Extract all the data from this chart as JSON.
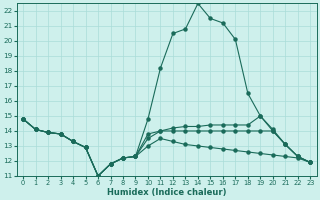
{
  "xlabel": "Humidex (Indice chaleur)",
  "bg_color": "#cef0ec",
  "grid_color": "#aaddd8",
  "line_color": "#1a6b5a",
  "xlim": [
    -0.5,
    23.5
  ],
  "ylim": [
    11,
    22.5
  ],
  "xticks": [
    0,
    1,
    2,
    3,
    4,
    5,
    6,
    7,
    8,
    9,
    10,
    11,
    12,
    13,
    14,
    15,
    16,
    17,
    18,
    19,
    20,
    21,
    22,
    23
  ],
  "yticks": [
    11,
    12,
    13,
    14,
    15,
    16,
    17,
    18,
    19,
    20,
    21,
    22
  ],
  "series": [
    {
      "x": [
        0,
        1,
        2,
        3,
        4,
        5,
        6,
        7,
        8,
        9,
        10,
        11,
        12,
        13,
        14,
        15,
        16,
        17,
        18,
        19,
        20,
        21,
        22,
        23
      ],
      "y": [
        14.8,
        14.1,
        13.9,
        13.8,
        13.3,
        12.9,
        11.0,
        11.8,
        12.2,
        12.3,
        14.8,
        18.2,
        20.5,
        20.8,
        22.5,
        21.5,
        21.2,
        20.1,
        16.5,
        15.0,
        14.0,
        13.1,
        12.3,
        11.9
      ]
    },
    {
      "x": [
        0,
        1,
        2,
        3,
        4,
        5,
        6,
        7,
        8,
        9,
        10,
        11,
        12,
        13,
        14,
        15,
        16,
        17,
        18,
        19,
        20,
        21,
        22,
        23
      ],
      "y": [
        14.8,
        14.1,
        13.9,
        13.8,
        13.3,
        12.9,
        11.0,
        11.8,
        12.2,
        12.3,
        13.5,
        14.0,
        14.2,
        14.3,
        14.3,
        14.4,
        14.4,
        14.4,
        14.4,
        15.0,
        14.1,
        13.1,
        12.3,
        11.9
      ]
    },
    {
      "x": [
        0,
        1,
        2,
        3,
        4,
        5,
        6,
        7,
        8,
        9,
        10,
        11,
        12,
        13,
        14,
        15,
        16,
        17,
        18,
        19,
        20,
        21,
        22,
        23
      ],
      "y": [
        14.8,
        14.1,
        13.9,
        13.8,
        13.3,
        12.9,
        11.0,
        11.8,
        12.2,
        12.3,
        13.0,
        13.5,
        13.3,
        13.1,
        13.0,
        12.9,
        12.8,
        12.7,
        12.6,
        12.5,
        12.4,
        12.3,
        12.2,
        11.9
      ]
    },
    {
      "x": [
        0,
        1,
        2,
        3,
        4,
        5,
        6,
        7,
        8,
        9,
        10,
        11,
        12,
        13,
        14,
        15,
        16,
        17,
        18,
        19,
        20,
        21,
        22,
        23
      ],
      "y": [
        14.8,
        14.1,
        13.9,
        13.8,
        13.3,
        12.9,
        11.0,
        11.8,
        12.2,
        12.3,
        13.8,
        14.0,
        14.0,
        14.0,
        14.0,
        14.0,
        14.0,
        14.0,
        14.0,
        14.0,
        14.0,
        13.1,
        12.3,
        11.9
      ]
    }
  ]
}
